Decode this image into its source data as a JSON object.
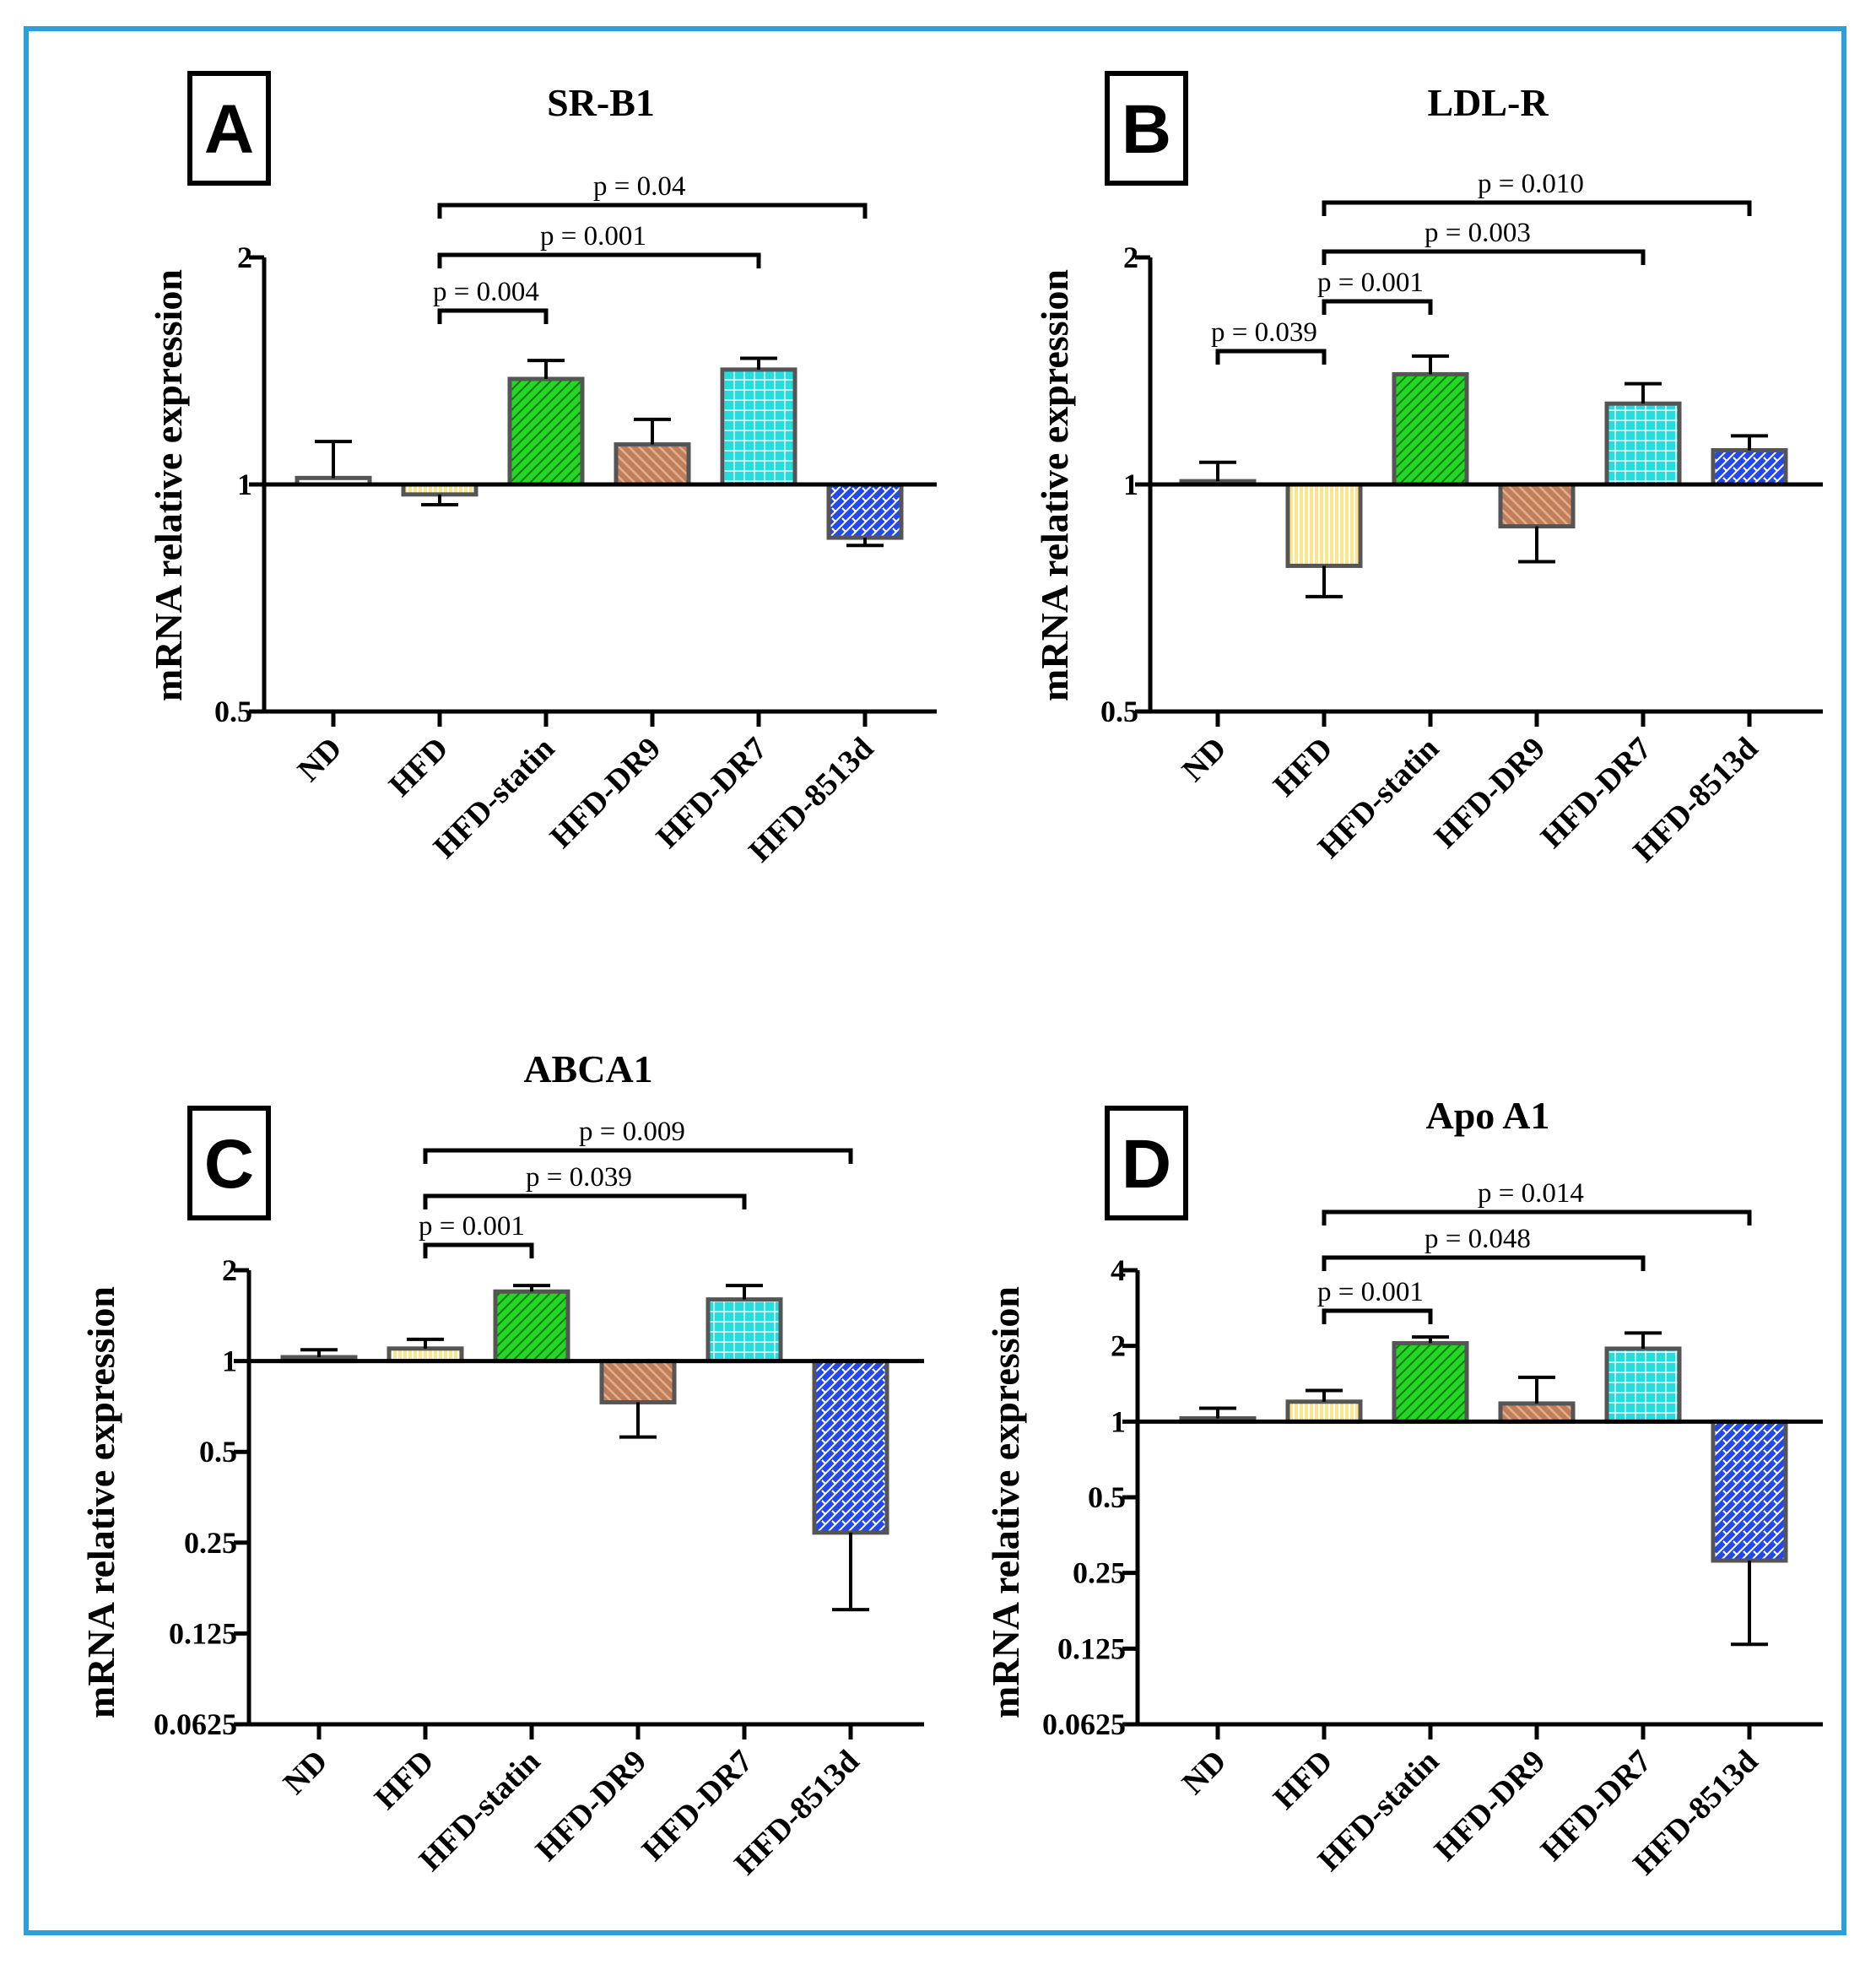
{
  "figure": {
    "frame_color": "#2a9fd8",
    "categories": [
      "ND",
      "HFD",
      "HFD-statin",
      "HFD-DR9",
      "HFD-DR7",
      "HFD-8513d"
    ],
    "y_axis_label": "mRNA relative expression",
    "group_colors": {
      "ND": "#ffffff",
      "HFD": "#fbe690",
      "HFD-statin": "#26d626",
      "HFD-DR9": "#c07f5a",
      "HFD-DR7": "#22dede",
      "HFD-8513d": "#2448f0"
    }
  },
  "chart_data": [
    {
      "panel": "A",
      "type": "bar",
      "title": "SR-B1",
      "ylabel": "mRNA relative expression",
      "yscale": "log2",
      "ylim": [
        0.5,
        2
      ],
      "yticks": [
        0.5,
        1,
        2
      ],
      "ytick_labels": [
        "0.5",
        "1",
        "2"
      ],
      "categories": [
        "ND",
        "HFD",
        "HFD-statin",
        "HFD-DR9",
        "HFD-DR7",
        "HFD-8513d"
      ],
      "values": [
        1.02,
        0.97,
        1.38,
        1.13,
        1.42,
        0.85
      ],
      "errors": [
        0.12,
        0.03,
        0.08,
        0.09,
        0.05,
        0.02
      ],
      "comparisons": [
        {
          "from": "HFD",
          "to": "HFD-statin",
          "label": "p = 0.004"
        },
        {
          "from": "HFD",
          "to": "HFD-DR7",
          "label": "p = 0.001"
        },
        {
          "from": "HFD",
          "to": "HFD-8513d",
          "label": "p = 0.04"
        }
      ]
    },
    {
      "panel": "B",
      "type": "bar",
      "title": "LDL-R",
      "ylabel": "mRNA relative expression",
      "yscale": "log2",
      "ylim": [
        0.5,
        2
      ],
      "yticks": [
        0.5,
        1,
        2
      ],
      "ytick_labels": [
        "0.5",
        "1",
        "2"
      ],
      "categories": [
        "ND",
        "HFD",
        "HFD-statin",
        "HFD-DR9",
        "HFD-DR7",
        "HFD-8513d"
      ],
      "values": [
        1.01,
        0.78,
        1.4,
        0.88,
        1.28,
        1.11
      ],
      "errors": [
        0.06,
        0.07,
        0.08,
        0.09,
        0.08,
        0.05
      ],
      "comparisons": [
        {
          "from": "ND",
          "to": "HFD",
          "label": "p = 0.039"
        },
        {
          "from": "HFD",
          "to": "HFD-statin",
          "label": "p = 0.001"
        },
        {
          "from": "HFD",
          "to": "HFD-DR7",
          "label": "p = 0.003"
        },
        {
          "from": "HFD",
          "to": "HFD-8513d",
          "label": "p = 0.010"
        }
      ]
    },
    {
      "panel": "C",
      "type": "bar",
      "title": "ABCA1",
      "ylabel": "mRNA relative expression",
      "yscale": "log2",
      "ylim": [
        0.0625,
        2
      ],
      "yticks": [
        0.0625,
        0.125,
        0.25,
        0.5,
        1,
        2
      ],
      "ytick_labels": [
        "0.0625",
        "0.125",
        "0.25",
        "0.5",
        "1",
        "2"
      ],
      "categories": [
        "ND",
        "HFD",
        "HFD-statin",
        "HFD-DR9",
        "HFD-DR7",
        "HFD-8513d"
      ],
      "values": [
        1.03,
        1.1,
        1.7,
        0.73,
        1.6,
        0.27
      ],
      "errors": [
        0.06,
        0.08,
        0.08,
        0.17,
        0.18,
        0.12
      ],
      "comparisons": [
        {
          "from": "HFD",
          "to": "HFD-statin",
          "label": "p = 0.001"
        },
        {
          "from": "HFD",
          "to": "HFD-DR7",
          "label": "p = 0.039"
        },
        {
          "from": "HFD",
          "to": "HFD-8513d",
          "label": "p = 0.009"
        }
      ]
    },
    {
      "panel": "D",
      "type": "bar",
      "title": "Apo A1",
      "ylabel": "mRNA relative expression",
      "yscale": "log2",
      "ylim": [
        0.0625,
        4
      ],
      "yticks": [
        0.0625,
        0.125,
        0.25,
        0.5,
        1,
        2,
        4
      ],
      "ytick_labels": [
        "0.0625",
        "0.125",
        "0.25",
        "0.5",
        "1",
        "2",
        "4"
      ],
      "categories": [
        "ND",
        "HFD",
        "HFD-statin",
        "HFD-DR9",
        "HFD-DR7",
        "HFD-8513d"
      ],
      "values": [
        1.03,
        1.2,
        2.05,
        1.18,
        1.95,
        0.28
      ],
      "errors": [
        0.1,
        0.13,
        0.12,
        0.32,
        0.3,
        0.15
      ],
      "comparisons": [
        {
          "from": "HFD",
          "to": "HFD-statin",
          "label": "p = 0.001"
        },
        {
          "from": "HFD",
          "to": "HFD-DR7",
          "label": "p = 0.048"
        },
        {
          "from": "HFD",
          "to": "HFD-8513d",
          "label": "p = 0.014"
        }
      ]
    }
  ]
}
